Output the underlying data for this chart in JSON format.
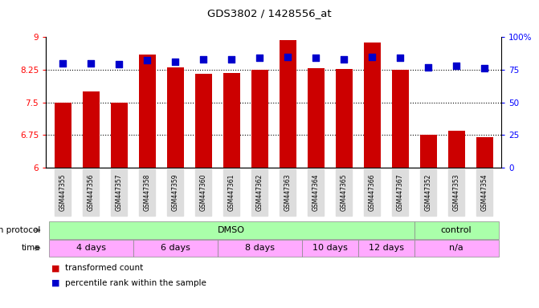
{
  "title": "GDS3802 / 1428556_at",
  "samples": [
    "GSM447355",
    "GSM447356",
    "GSM447357",
    "GSM447358",
    "GSM447359",
    "GSM447360",
    "GSM447361",
    "GSM447362",
    "GSM447363",
    "GSM447364",
    "GSM447365",
    "GSM447366",
    "GSM447367",
    "GSM447352",
    "GSM447353",
    "GSM447354"
  ],
  "bar_values": [
    7.5,
    7.76,
    7.5,
    8.6,
    8.3,
    8.15,
    8.18,
    8.24,
    8.93,
    8.28,
    8.26,
    8.88,
    8.25,
    6.75,
    6.85,
    6.7
  ],
  "dot_values_pct": [
    80,
    80,
    79,
    82,
    81,
    83,
    83,
    84,
    85,
    84,
    83,
    85,
    84,
    77,
    78,
    76
  ],
  "bar_color": "#CC0000",
  "dot_color": "#0000CC",
  "ylim_left": [
    6,
    9
  ],
  "ylim_right": [
    0,
    100
  ],
  "yticks_left": [
    6,
    6.75,
    7.5,
    8.25,
    9
  ],
  "ytick_labels_left": [
    "6",
    "6.75",
    "7.5",
    "8.25",
    "9"
  ],
  "yticks_right": [
    0,
    25,
    50,
    75,
    100
  ],
  "ytick_labels_right": [
    "0",
    "25",
    "50",
    "75",
    "100%"
  ],
  "hlines": [
    6.75,
    7.5,
    8.25
  ],
  "growth_protocol_label": "growth protocol",
  "time_label": "time",
  "gp_groups": [
    {
      "label": "DMSO",
      "color": "#AAFFAA",
      "start": -0.5,
      "end": 12.5
    },
    {
      "label": "control",
      "color": "#AAFFAA",
      "start": 12.5,
      "end": 15.5
    }
  ],
  "time_groups": [
    {
      "label": "4 days",
      "color": "#FFAAFF",
      "start": -0.5,
      "end": 2.5
    },
    {
      "label": "6 days",
      "color": "#FFAAFF",
      "start": 2.5,
      "end": 5.5
    },
    {
      "label": "8 days",
      "color": "#FFAAFF",
      "start": 5.5,
      "end": 8.5
    },
    {
      "label": "10 days",
      "color": "#FFAAFF",
      "start": 8.5,
      "end": 10.5
    },
    {
      "label": "12 days",
      "color": "#FFAAFF",
      "start": 10.5,
      "end": 12.5
    },
    {
      "label": "n/a",
      "color": "#FFAAFF",
      "start": 12.5,
      "end": 15.5
    }
  ],
  "x_min": -0.6,
  "x_max": 15.6,
  "bar_width": 0.6,
  "dot_size": 28,
  "tick_bg_color": "#DDDDDD",
  "legend1_label": "transformed count",
  "legend2_label": "percentile rank within the sample"
}
